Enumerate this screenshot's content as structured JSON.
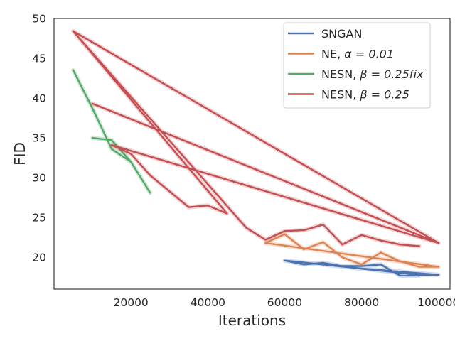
{
  "chart_data": {
    "type": "line",
    "xlabel": "Iterations",
    "ylabel": "FID",
    "xlim": [
      0,
      103000
    ],
    "ylim": [
      16,
      50
    ],
    "xticks": [
      20000,
      40000,
      60000,
      80000,
      100000
    ],
    "xtick_labels": [
      "20000",
      "40000",
      "60000",
      "80000",
      "100000"
    ],
    "yticks": [
      20,
      25,
      30,
      35,
      40,
      45,
      50
    ],
    "ytick_labels": [
      "20",
      "25",
      "30",
      "35",
      "40",
      "45",
      "50"
    ],
    "grid": false,
    "legend_position": "top-right",
    "series": [
      {
        "name": "SNGAN",
        "color": "#4c72b0",
        "points": [
          [
            60000,
            19.6
          ],
          [
            65000,
            19.1
          ],
          [
            70000,
            19.3
          ],
          [
            75000,
            18.9
          ],
          [
            80000,
            18.9
          ],
          [
            85000,
            19.1
          ],
          [
            90000,
            17.7
          ],
          [
            95000,
            17.7
          ],
          [
            90000,
            18.1
          ],
          [
            80000,
            18.6
          ],
          [
            60000,
            19.6
          ],
          [
            80000,
            18.6
          ],
          [
            100000,
            17.8
          ],
          [
            95000,
            17.8
          ],
          [
            60000,
            19.6
          ]
        ]
      },
      {
        "name": "NE, α = 0.01",
        "legend_text": "NE, ",
        "legend_math": "α = 0.01",
        "color": "#dd8452",
        "points": [
          [
            55000,
            21.8
          ],
          [
            60000,
            22.9
          ],
          [
            65000,
            21.0
          ],
          [
            70000,
            21.9
          ],
          [
            75000,
            20.0
          ],
          [
            80000,
            19.1
          ],
          [
            85000,
            20.6
          ],
          [
            90000,
            19.5
          ],
          [
            95000,
            18.8
          ],
          [
            100000,
            18.8
          ],
          [
            55000,
            21.8
          ]
        ]
      },
      {
        "name": "NESN, β = 0.25fix",
        "legend_text": "NESN, ",
        "legend_math": "β = 0.25fix",
        "color": "#55a868",
        "points": [
          [
            5000,
            43.5
          ],
          [
            10000,
            38.7
          ],
          [
            15000,
            33.6
          ],
          [
            20000,
            32.0
          ],
          [
            25000,
            28.1
          ],
          [
            20000,
            32.0
          ],
          [
            15000,
            34.7
          ],
          [
            10000,
            35.0
          ]
        ]
      },
      {
        "name": "NESN, β = 0.25",
        "legend_text": "NESN, ",
        "legend_math": "β = 0.25",
        "color": "#c44e52",
        "points": [
          [
            5000,
            48.4
          ],
          [
            45000,
            25.5
          ],
          [
            40000,
            26.5
          ],
          [
            35000,
            26.3
          ],
          [
            25000,
            30.3
          ],
          [
            20000,
            33.0
          ],
          [
            15000,
            34.1
          ],
          [
            100000,
            21.8
          ],
          [
            10000,
            39.3
          ],
          [
            100000,
            21.8
          ],
          [
            5000,
            48.4
          ],
          [
            50000,
            23.7
          ],
          [
            55000,
            22.2
          ],
          [
            60000,
            23.3
          ],
          [
            65000,
            23.4
          ],
          [
            70000,
            24.1
          ],
          [
            75000,
            21.6
          ],
          [
            80000,
            22.8
          ],
          [
            85000,
            22.1
          ],
          [
            90000,
            21.6
          ],
          [
            95000,
            21.4
          ]
        ]
      }
    ]
  }
}
